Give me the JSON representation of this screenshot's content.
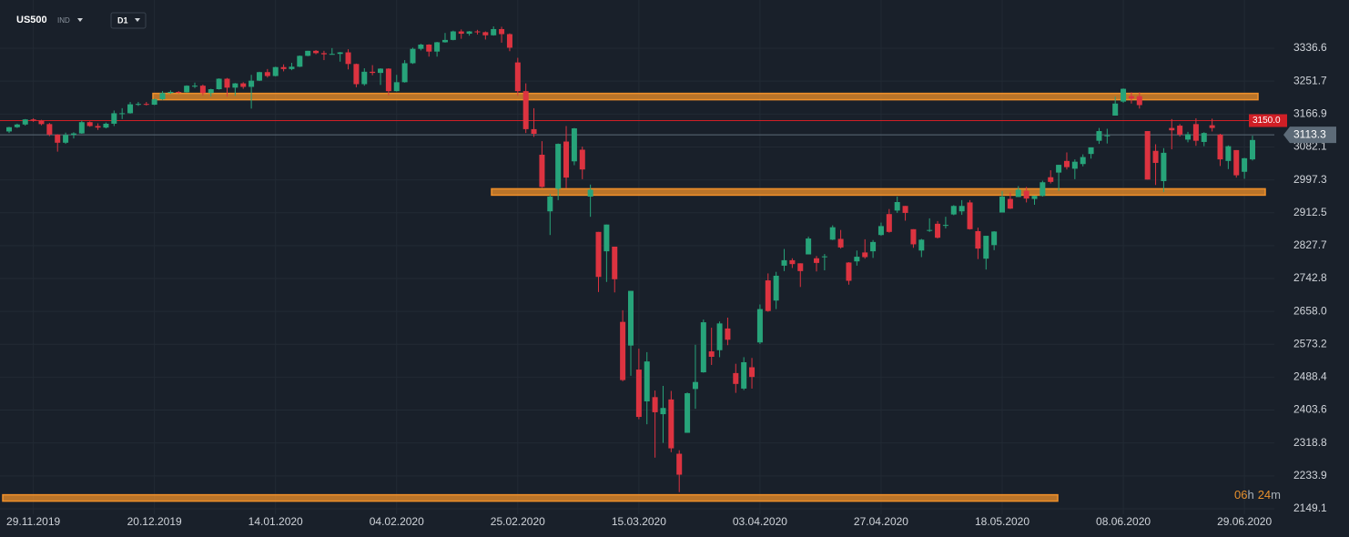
{
  "chart_data": {
    "type": "candlestick",
    "symbol": "US500",
    "market": "IND",
    "timeframe": "D1",
    "countdown": [
      "06",
      "h",
      "24",
      "m"
    ],
    "up_color": "#27a47a",
    "down_color": "#dc3340",
    "level_color": "#f0902a",
    "grid": true,
    "categories": [
      null,
      null,
      null,
      "29.11.2019",
      null,
      null,
      null,
      null,
      null,
      null,
      null,
      null,
      null,
      null,
      null,
      null,
      null,
      null,
      "20.12.2019",
      null,
      null,
      null,
      null,
      null,
      null,
      null,
      null,
      null,
      null,
      null,
      null,
      null,
      null,
      "14.01.2020",
      null,
      null,
      null,
      null,
      null,
      null,
      null,
      null,
      null,
      null,
      null,
      null,
      null,
      null,
      "04.02.2020",
      null,
      null,
      null,
      null,
      null,
      null,
      null,
      null,
      null,
      null,
      null,
      null,
      null,
      null,
      "25.02.2020",
      null,
      null,
      null,
      null,
      null,
      null,
      null,
      null,
      null,
      null,
      null,
      null,
      null,
      null,
      "15.03.2020",
      null,
      null,
      null,
      null,
      null,
      null,
      null,
      null,
      null,
      null,
      null,
      null,
      null,
      null,
      "03.04.2020",
      null,
      null,
      null,
      null,
      null,
      null,
      null,
      null,
      null,
      null,
      null,
      null,
      null,
      null,
      "27.04.2020",
      null,
      null,
      null,
      null,
      null,
      null,
      null,
      null,
      null,
      null,
      null,
      null,
      null,
      null,
      "18.05.2020",
      null,
      null,
      null,
      null,
      null,
      null,
      null,
      null,
      null,
      null,
      null,
      null,
      null,
      null,
      "08.06.2020",
      null,
      null,
      null,
      null,
      null,
      null,
      null,
      null,
      null,
      null,
      null,
      null,
      null,
      null,
      "29.06.2020",
      null
    ],
    "open": [
      3122,
      3133,
      3140,
      3153,
      3150,
      3141,
      3114,
      3093,
      3113,
      3117,
      3146,
      3136,
      3132,
      3142,
      3169,
      3169,
      3192,
      3193,
      3191,
      3205,
      3221,
      3224,
      3223,
      3240,
      3240,
      3221,
      3231,
      3258,
      3235,
      3246,
      3237,
      3253,
      3275,
      3265,
      3288,
      3283,
      3289,
      3317,
      3330,
      3324,
      3321,
      3322,
      3326,
      3296,
      3244,
      3276,
      3273,
      3284,
      3226,
      3249,
      3298,
      3335,
      3346,
      3328,
      3352,
      3358,
      3380,
      3374,
      3380,
      3378,
      3370,
      3386,
      3373,
      3300,
      3226,
      3128,
      3062,
      2916,
      2974,
      3096,
      3045,
      3075,
      2954,
      2863,
      2813,
      2825,
      2631,
      2570,
      2508,
      2426,
      2437,
      2393,
      2431,
      2291,
      2345,
      2458,
      2501,
      2555,
      2558,
      2614,
      2499,
      2459,
      2514,
      2578,
      2738,
      2686,
      2776,
      2790,
      2782,
      2805,
      2795,
      2800,
      2843,
      2845,
      2784,
      2787,
      2810,
      2813,
      2855,
      2909,
      2918,
      2930,
      2870,
      2815,
      2868,
      2884,
      2879,
      2908,
      2916,
      2939,
      2865,
      2794,
      2829,
      2913,
      2948,
      2953,
      2969,
      2948,
      2956,
      3004,
      3016,
      3046,
      3026,
      3038,
      3064,
      3098,
      3111,
      3163,
      3199,
      3213,
      3213,
      3123,
      3072,
      2994,
      3131,
      3137,
      3101,
      3141,
      3095,
      3138,
      3114,
      3046,
      3074,
      3018,
      3050
    ],
    "high": [
      3134,
      3142,
      3154,
      3156,
      3152,
      3144,
      3115,
      3119,
      3120,
      3150,
      3148,
      3143,
      3145,
      3176,
      3182,
      3198,
      3198,
      3198,
      3207,
      3226,
      3228,
      3226,
      3241,
      3248,
      3243,
      3232,
      3259,
      3260,
      3247,
      3249,
      3268,
      3276,
      3283,
      3289,
      3295,
      3299,
      3318,
      3330,
      3332,
      3330,
      3337,
      3327,
      3334,
      3297,
      3285,
      3293,
      3285,
      3285,
      3268,
      3306,
      3338,
      3348,
      3347,
      3353,
      3376,
      3382,
      3385,
      3381,
      3384,
      3380,
      3393,
      3392,
      3375,
      3312,
      3246,
      3182,
      3097,
      2960,
      3091,
      3136,
      3131,
      3083,
      2985,
      2863,
      2882,
      2825,
      2661,
      2711,
      2562,
      2553,
      2454,
      2466,
      2453,
      2300,
      2449,
      2572,
      2637,
      2616,
      2632,
      2642,
      2523,
      2540,
      2538,
      2676,
      2756,
      2760,
      2819,
      2795,
      2782,
      2851,
      2801,
      2806,
      2880,
      2868,
      2785,
      2815,
      2844,
      2842,
      2887,
      2922,
      2954,
      2930,
      2870,
      2845,
      2898,
      2891,
      2902,
      2932,
      2945,
      2945,
      2874,
      2852,
      2865,
      2968,
      2964,
      2981,
      2979,
      2956,
      2995,
      3022,
      3036,
      3068,
      3050,
      3063,
      3081,
      3131,
      3129,
      3212,
      3233,
      3223,
      3223,
      3123,
      3089,
      3079,
      3154,
      3141,
      3121,
      3156,
      3120,
      3155,
      3116,
      3086,
      3074,
      3054,
      3111
    ],
    "low": [
      3118,
      3131,
      3137,
      3147,
      3138,
      3110,
      3070,
      3090,
      3104,
      3116,
      3134,
      3126,
      3130,
      3136,
      3154,
      3168,
      3188,
      3189,
      3190,
      3203,
      3219,
      3220,
      3222,
      3234,
      3215,
      3212,
      3230,
      3212,
      3214,
      3232,
      3181,
      3252,
      3261,
      3264,
      3277,
      3280,
      3288,
      3316,
      3321,
      3306,
      3320,
      3302,
      3282,
      3236,
      3240,
      3267,
      3242,
      3215,
      3225,
      3248,
      3296,
      3331,
      3315,
      3315,
      3351,
      3357,
      3361,
      3369,
      3372,
      3359,
      3369,
      3351,
      3329,
      3214,
      3118,
      3108,
      2977,
      2855,
      2945,
      2976,
      3035,
      2999,
      2902,
      2708,
      2734,
      2707,
      2478,
      2492,
      2380,
      2367,
      2281,
      2319,
      2295,
      2192,
      2345,
      2407,
      2500,
      2520,
      2540,
      2571,
      2448,
      2455,
      2459,
      2574,
      2657,
      2664,
      2762,
      2770,
      2721,
      2805,
      2761,
      2764,
      2842,
      2820,
      2727,
      2776,
      2794,
      2796,
      2853,
      2861,
      2912,
      2892,
      2822,
      2798,
      2863,
      2846,
      2872,
      2906,
      2907,
      2869,
      2793,
      2766,
      2816,
      2913,
      2922,
      2953,
      2939,
      2933,
      2954,
      2988,
      2969,
      3024,
      2999,
      3032,
      3052,
      3090,
      3091,
      3163,
      3196,
      3194,
      3181,
      2998,
      2984,
      2966,
      3076,
      3109,
      3094,
      3085,
      3084,
      3122,
      3033,
      3025,
      3003,
      3000,
      3047
    ],
    "close": [
      3133,
      3140,
      3153,
      3150,
      3141,
      3114,
      3093,
      3113,
      3117,
      3146,
      3136,
      3132,
      3142,
      3169,
      3169,
      3192,
      3193,
      3191,
      3205,
      3221,
      3224,
      3223,
      3240,
      3240,
      3221,
      3231,
      3258,
      3235,
      3246,
      3237,
      3253,
      3275,
      3265,
      3288,
      3283,
      3289,
      3317,
      3330,
      3324,
      3321,
      3322,
      3326,
      3296,
      3244,
      3276,
      3273,
      3284,
      3226,
      3249,
      3298,
      3335,
      3346,
      3328,
      3352,
      3358,
      3380,
      3374,
      3380,
      3378,
      3370,
      3386,
      3373,
      3338,
      3226,
      3128,
      3116,
      2979,
      2954,
      3090,
      3003,
      3130,
      3024,
      2972,
      2747,
      2882,
      2741,
      2481,
      2711,
      2386,
      2529,
      2398,
      2409,
      2305,
      2237,
      2447,
      2476,
      2630,
      2541,
      2627,
      2585,
      2471,
      2527,
      2489,
      2664,
      2659,
      2750,
      2790,
      2780,
      2762,
      2846,
      2783,
      2800,
      2875,
      2823,
      2737,
      2799,
      2798,
      2837,
      2878,
      2863,
      2940,
      2912,
      2831,
      2843,
      2868,
      2848,
      2881,
      2930,
      2930,
      2870,
      2820,
      2853,
      2864,
      2954,
      2923,
      2972,
      2949,
      2956,
      2991,
      2992,
      3036,
      3030,
      3044,
      3056,
      3081,
      3123,
      3112,
      3194,
      3232,
      3207,
      3190,
      2998,
      3041,
      3067,
      3125,
      3114,
      3115,
      3098,
      3118,
      3131,
      3050,
      3084,
      3009,
      3053,
      3100
    ],
    "levels": [
      3212,
      2966,
      2177
    ],
    "price_lines": [
      {
        "value": {
          "value": 3150,
          "label": "3150.0"
        },
        "color": "#d01f26"
      },
      {
        "value": 3113.3,
        "color": "#5d6b78"
      }
    ],
    "ylim": [
      2135,
      3461
    ],
    "yticks": [
      3336.6,
      3251.7,
      3166.9,
      3082.1,
      2997.3,
      2912.5,
      2827.7,
      2742.8,
      {
        "value": 2658,
        "label": "2658.0"
      },
      2573.2,
      2488.4,
      2403.6,
      2318.8,
      2233.9,
      2149.1
    ]
  }
}
